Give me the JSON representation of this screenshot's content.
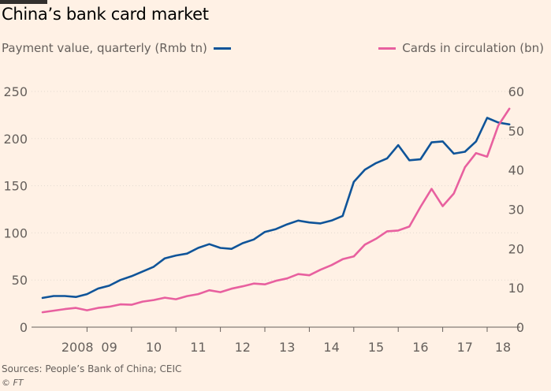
{
  "title": "China’s bank card market",
  "source": "Sources: People’s Bank of China; CEIC",
  "credit": "© FT",
  "colors": {
    "background": "#fff1e5",
    "payment": "#0f5499",
    "cards": "#e8609f"
  },
  "chart_data": {
    "type": "line",
    "title": "China’s bank card market",
    "x_tick_labels": [
      "2008",
      "09",
      "10",
      "11",
      "12",
      "13",
      "14",
      "15",
      "16",
      "17",
      "18"
    ],
    "y_left": {
      "label": "Payment value, quarterly (Rmb tn)",
      "ticks": [
        "0",
        "50",
        "100",
        "150",
        "200",
        "250"
      ],
      "range": [
        0,
        260
      ]
    },
    "y_right": {
      "label": "Cards in circulation (bn)",
      "ticks": [
        "0",
        "10",
        "20",
        "30",
        "40",
        "50",
        "60"
      ],
      "range": [
        0,
        62.4
      ]
    },
    "grid": "horizontal",
    "legend_placement": "top",
    "series": [
      {
        "name": "Payment value, quarterly (Rmb tn)",
        "axis": "left",
        "values": [
          31,
          33,
          33,
          32,
          35,
          41,
          44,
          50,
          54,
          59,
          64,
          73,
          76,
          78,
          84,
          88,
          84,
          83,
          89,
          93,
          101,
          104,
          109,
          113,
          111,
          110,
          113,
          118,
          154,
          167,
          174,
          179,
          193,
          177,
          178,
          196,
          197,
          184,
          186,
          197,
          222,
          217,
          215
        ]
      },
      {
        "name": "Cards in circulation (bn)",
        "axis": "right",
        "values": [
          3.8,
          4.2,
          4.6,
          4.9,
          4.3,
          4.9,
          5.2,
          5.8,
          5.7,
          6.5,
          6.9,
          7.5,
          7.1,
          7.9,
          8.4,
          9.4,
          8.9,
          9.8,
          10.4,
          11.1,
          10.9,
          11.8,
          12.4,
          13.5,
          13.2,
          14.6,
          15.8,
          17.3,
          18.0,
          21.0,
          22.5,
          24.4,
          24.6,
          25.6,
          30.6,
          35.2,
          30.8,
          34.0,
          40.7,
          44.3,
          43.4,
          51.3,
          55.6
        ]
      }
    ]
  }
}
